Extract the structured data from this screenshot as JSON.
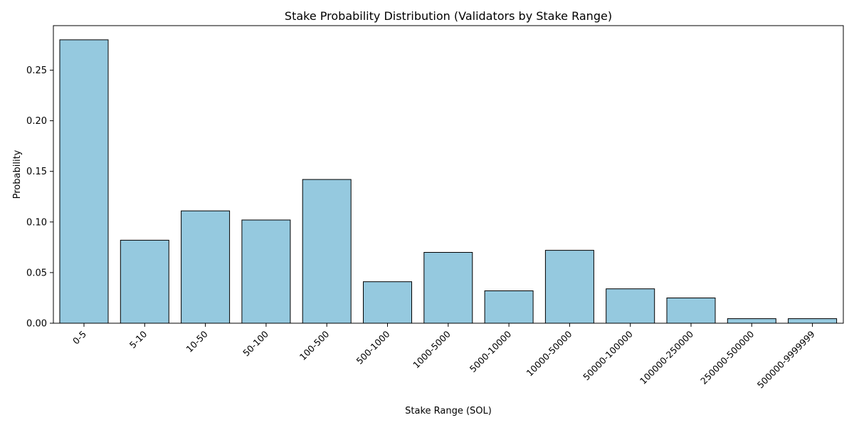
{
  "chart_data": {
    "type": "bar",
    "title": "Stake Probability Distribution (Validators by Stake Range)",
    "xlabel": "Stake Range (SOL)",
    "ylabel": "Probability",
    "categories": [
      "0-5",
      "5-10",
      "10-50",
      "50-100",
      "100-500",
      "500-1000",
      "1000-5000",
      "5000-10000",
      "10000-50000",
      "50000-100000",
      "100000-250000",
      "250000-500000",
      "500000-9999999"
    ],
    "values": [
      0.28,
      0.082,
      0.111,
      0.102,
      0.142,
      0.041,
      0.07,
      0.032,
      0.072,
      0.034,
      0.025,
      0.0045,
      0.0045
    ],
    "ylim": [
      0,
      0.294
    ],
    "yticks": [
      "0.00",
      "0.05",
      "0.10",
      "0.15",
      "0.20",
      "0.25"
    ],
    "bar_color": "#95c9df",
    "edge_color": "#000000",
    "grid": false,
    "legend": "none"
  }
}
